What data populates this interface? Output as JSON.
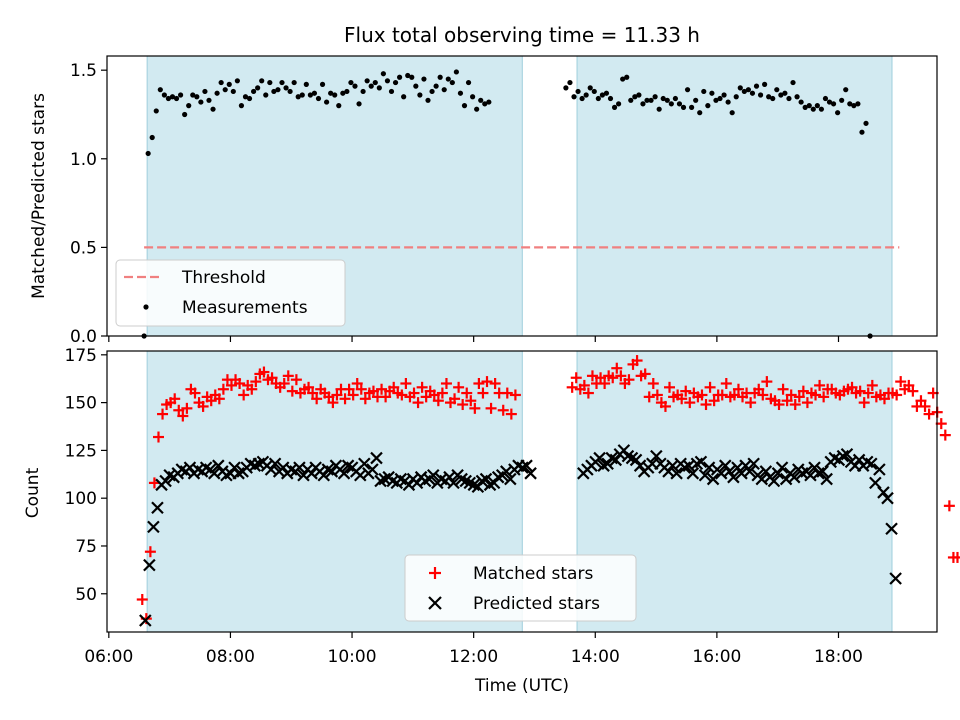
{
  "figure": {
    "title": "Flux total observing time = 11.33 h",
    "xlabel": "Time (UTC)",
    "xticks": [
      "06:00",
      "08:00",
      "10:00",
      "12:00",
      "14:00",
      "16:00",
      "18:00"
    ]
  },
  "chart_data": [
    {
      "type": "scatter",
      "ylabel": "Matched/Predicted stars",
      "xrange_hours": [
        5.97,
        19.62
      ],
      "ylim": [
        0,
        1.58
      ],
      "yticks": [
        "0.0",
        "0.5",
        "1.0",
        "1.5"
      ],
      "shaded_intervals_hours": [
        [
          6.63,
          12.8
        ],
        [
          13.7,
          18.88
        ]
      ],
      "shade_color": "#add8e6",
      "legend": {
        "placement": "lower-left",
        "threshold_label": "Threshold",
        "measurements_label": "Measurements"
      },
      "threshold": {
        "value": 0.5,
        "x_start_hours": 6.58,
        "x_end_hours": 19.0,
        "color": "#f08080"
      },
      "series": [
        {
          "name": "Measurements",
          "color": "#000000",
          "x_start_hours": 6.58,
          "x_step_hours": 0.0667,
          "values": [
            0,
            1.03,
            1.12,
            1.27,
            1.39,
            1.36,
            1.34,
            1.35,
            1.34,
            1.36,
            1.25,
            1.3,
            1.36,
            1.35,
            1.32,
            1.38,
            1.33,
            1.28,
            1.37,
            1.43,
            1.39,
            1.42,
            1.38,
            1.44,
            1.3,
            1.35,
            1.34,
            1.38,
            1.4,
            1.44,
            1.36,
            1.43,
            1.38,
            1.39,
            1.43,
            1.4,
            1.38,
            1.43,
            1.35,
            1.36,
            1.42,
            1.36,
            1.37,
            1.34,
            1.42,
            1.32,
            1.37,
            1.36,
            1.3,
            1.37,
            1.38,
            1.43,
            1.41,
            1.31,
            1.38,
            1.44,
            1.41,
            1.43,
            1.4,
            1.48,
            1.44,
            1.38,
            1.43,
            1.46,
            1.35,
            1.47,
            1.46,
            1.41,
            1.36,
            1.45,
            1.33,
            1.38,
            1.41,
            1.46,
            1.39,
            1.45,
            1.43,
            1.49,
            1.37,
            1.3,
            1.43,
            1.35,
            1.28,
            1.33,
            1.31,
            1.32,
            null,
            null,
            null,
            null,
            null,
            null,
            null,
            null,
            null,
            null,
            null,
            null,
            null,
            null,
            null,
            null,
            null,
            null,
            1.4,
            1.43,
            1.35,
            1.38,
            1.34,
            1.36,
            1.4,
            1.38,
            1.34,
            1.36,
            1.37,
            1.34,
            1.29,
            1.31,
            1.45,
            1.46,
            1.33,
            1.35,
            1.36,
            1.31,
            1.33,
            1.33,
            1.35,
            1.28,
            1.34,
            1.33,
            1.31,
            1.34,
            1.31,
            1.29,
            1.39,
            1.29,
            1.33,
            1.26,
            1.38,
            1.3,
            1.37,
            1.33,
            1.34,
            1.36,
            1.32,
            1.26,
            1.35,
            1.4,
            1.38,
            1.39,
            1.37,
            1.41,
            1.36,
            1.42,
            1.35,
            1.34,
            1.39,
            1.36,
            1.37,
            1.34,
            1.43,
            1.35,
            1.32,
            1.29,
            1.3,
            1.28,
            1.3,
            1.28,
            1.34,
            1.32,
            1.31,
            1.26,
            1.33,
            1.39,
            1.31,
            1.3,
            1.31,
            1.15,
            1.2,
            0
          ]
        }
      ]
    },
    {
      "type": "scatter",
      "ylabel": "Count",
      "xrange_hours": [
        5.97,
        19.62
      ],
      "ylim": [
        30,
        177
      ],
      "yticks": [
        "50",
        "75",
        "100",
        "125",
        "150",
        "175"
      ],
      "shaded_intervals_hours": [
        [
          6.63,
          12.8
        ],
        [
          13.7,
          18.88
        ]
      ],
      "legend": {
        "placement": "lower-center"
      },
      "series": [
        {
          "name": "Matched stars",
          "marker": "plus",
          "color": "#ff0000",
          "x_start_hours": 6.55,
          "x_step_hours": 0.0667,
          "values": [
            47,
            37,
            72,
            108,
            132,
            144,
            149,
            150,
            152,
            146,
            143,
            147,
            157,
            155,
            150,
            148,
            153,
            151,
            154,
            152,
            157,
            162,
            159,
            162,
            160,
            154,
            159,
            157,
            161,
            165,
            166,
            162,
            163,
            160,
            158,
            160,
            164,
            156,
            162,
            155,
            157,
            158,
            155,
            152,
            157,
            155,
            153,
            150,
            154,
            157,
            152,
            157,
            154,
            160,
            157,
            152,
            155,
            156,
            153,
            157,
            153,
            156,
            158,
            155,
            154,
            160,
            153,
            155,
            150,
            158,
            153,
            156,
            154,
            151,
            155,
            160,
            150,
            152,
            158,
            149,
            155,
            151,
            147,
            160,
            155,
            161,
            147,
            160,
            155,
            146,
            155,
            144,
            154,
            null,
            null,
            null,
            null,
            null,
            null,
            null,
            null,
            null,
            null,
            null,
            null,
            null,
            158,
            163,
            157,
            159,
            155,
            164,
            160,
            163,
            160,
            164,
            163,
            168,
            164,
            160,
            162,
            170,
            172,
            164,
            165,
            153,
            160,
            154,
            150,
            148,
            158,
            153,
            154,
            152,
            156,
            150,
            155,
            153,
            154,
            149,
            158,
            151,
            154,
            154,
            160,
            153,
            154,
            157,
            153,
            155,
            150,
            155,
            157,
            154,
            161,
            152,
            151,
            149,
            157,
            151,
            154,
            149,
            153,
            156,
            150,
            155,
            154,
            159,
            153,
            157,
            157,
            155,
            154,
            156,
            157,
            158,
            155,
            156,
            150,
            155,
            159,
            153,
            154,
            152,
            155,
            155,
            154,
            161,
            157,
            159,
            156,
            148,
            151,
            148,
            144,
            155,
            145,
            139,
            133,
            96,
            69,
            69
          ]
        },
        {
          "name": "Predicted stars",
          "marker": "x",
          "color": "#000000",
          "x_start_hours": 6.6,
          "x_step_hours": 0.0667,
          "values": [
            36,
            65,
            85,
            95,
            107,
            109,
            112,
            111,
            113,
            115,
            114,
            116,
            113,
            115,
            114,
            116,
            115,
            113,
            117,
            114,
            112,
            113,
            116,
            113,
            114,
            116,
            118,
            117,
            118,
            119,
            117,
            115,
            118,
            114,
            116,
            113,
            115,
            114,
            116,
            112,
            115,
            113,
            116,
            114,
            112,
            115,
            114,
            117,
            115,
            113,
            117,
            116,
            114,
            112,
            118,
            113,
            115,
            121,
            109,
            110,
            111,
            109,
            108,
            110,
            109,
            107,
            110,
            108,
            111,
            109,
            110,
            112,
            108,
            110,
            109,
            111,
            108,
            112,
            110,
            109,
            108,
            107,
            106,
            109,
            110,
            107,
            108,
            111,
            112,
            114,
            110,
            115,
            117,
            116,
            117,
            113,
            null,
            null,
            null,
            null,
            null,
            null,
            null,
            null,
            null,
            null,
            null,
            null,
            113,
            115,
            117,
            119,
            121,
            117,
            118,
            121,
            120,
            123,
            125,
            122,
            121,
            120,
            117,
            114,
            116,
            118,
            122,
            118,
            116,
            114,
            117,
            113,
            118,
            116,
            117,
            113,
            118,
            119,
            112,
            116,
            110,
            115,
            113,
            117,
            114,
            111,
            116,
            113,
            117,
            114,
            118,
            112,
            110,
            114,
            111,
            109,
            113,
            116,
            110,
            113,
            111,
            115,
            113,
            114,
            112,
            116,
            113,
            114,
            110,
            119,
            121,
            120,
            122,
            123,
            119,
            117,
            120,
            117,
            119,
            118,
            108,
            115,
            103,
            100,
            84,
            58
          ]
        }
      ]
    }
  ]
}
